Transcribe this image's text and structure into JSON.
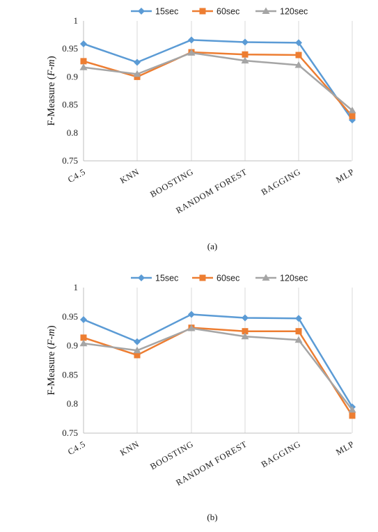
{
  "chart_data": [
    {
      "type": "line",
      "caption": "(a)",
      "ylabel": "F-Measure",
      "ylabel_italic": "F-m",
      "ylim": [
        0.75,
        1
      ],
      "yticks": [
        "0.75",
        "0.8",
        "0.85",
        "0.9",
        "0.95",
        "1"
      ],
      "grid": "vertical",
      "legend": "top",
      "categories": [
        "C4.5",
        "KNN",
        "BOOSTING",
        "RANDOM FOREST",
        "BAGGING",
        "MLP"
      ],
      "series": [
        {
          "name": "15sec",
          "color": "#5b9bd5",
          "marker": "diamond",
          "values": [
            0.959,
            0.926,
            0.966,
            0.962,
            0.961,
            0.823
          ]
        },
        {
          "name": "60sec",
          "color": "#ed7d31",
          "marker": "square",
          "values": [
            0.928,
            0.9,
            0.944,
            0.94,
            0.939,
            0.83
          ]
        },
        {
          "name": "120sec",
          "color": "#a5a5a5",
          "marker": "triangle",
          "values": [
            0.917,
            0.905,
            0.943,
            0.929,
            0.921,
            0.84
          ]
        }
      ]
    },
    {
      "type": "line",
      "caption": "(b)",
      "ylabel": "F-Measure",
      "ylabel_italic": "F-m",
      "ylim": [
        0.75,
        1
      ],
      "yticks": [
        "0.75",
        "0.8",
        "0.85",
        "0.9",
        "0.95",
        "1"
      ],
      "grid": "vertical",
      "legend": "top",
      "categories": [
        "C4.5",
        "KNN",
        "BOOSTING",
        "RANDOM FOREST",
        "BAGGING",
        "MLP"
      ],
      "series": [
        {
          "name": "15sec",
          "color": "#5b9bd5",
          "marker": "diamond",
          "values": [
            0.945,
            0.907,
            0.954,
            0.948,
            0.947,
            0.795
          ]
        },
        {
          "name": "60sec",
          "color": "#ed7d31",
          "marker": "square",
          "values": [
            0.914,
            0.884,
            0.931,
            0.925,
            0.925,
            0.78
          ]
        },
        {
          "name": "120sec",
          "color": "#a5a5a5",
          "marker": "triangle",
          "values": [
            0.904,
            0.892,
            0.93,
            0.916,
            0.91,
            0.79
          ]
        }
      ]
    }
  ]
}
